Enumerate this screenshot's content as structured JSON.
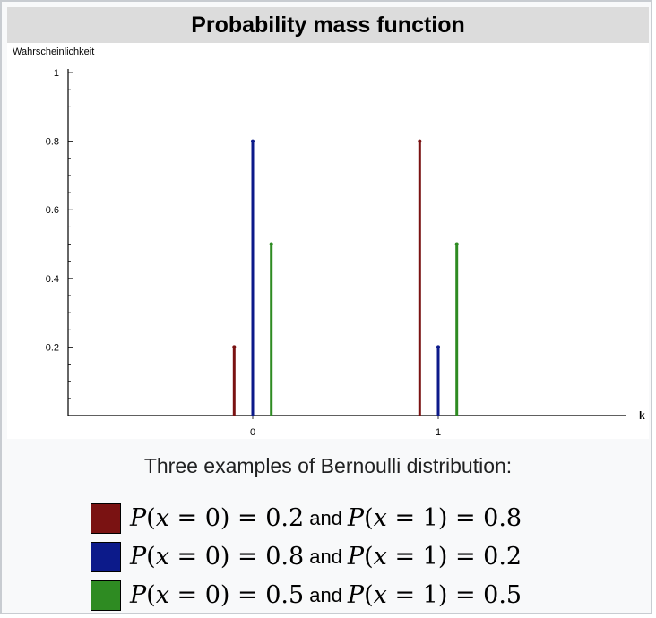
{
  "chart_data": {
    "type": "bar",
    "title": "Probability mass function",
    "ylabel": "Wahrscheinlichkeit",
    "xlabel": "k",
    "x_ticks": [
      "0",
      "1"
    ],
    "y_ticks": [
      "0.2",
      "0.4",
      "0.6",
      "0.8",
      "1"
    ],
    "ylim": [
      0,
      1
    ],
    "xlim": [
      -1,
      1.4
    ],
    "series": [
      {
        "color": "#7a1212",
        "x": [
          -0.1,
          0.9
        ],
        "values": [
          0.2,
          0.8
        ]
      },
      {
        "color": "#0c1a8a",
        "x": [
          0.0,
          1.0
        ],
        "values": [
          0.8,
          0.2
        ]
      },
      {
        "color": "#2e8b22",
        "x": [
          0.1,
          1.1
        ],
        "values": [
          0.5,
          0.5
        ]
      }
    ],
    "caption": "Three examples of Bernoulli distribution:",
    "legend": [
      {
        "color": "#7a1212",
        "p0": "0.2",
        "p1": "0.8"
      },
      {
        "color": "#0c1a8a",
        "p0": "0.8",
        "p1": "0.2"
      },
      {
        "color": "#2e8b22",
        "p0": "0.5",
        "p1": "0.5"
      }
    ],
    "legend_connector": "and"
  }
}
